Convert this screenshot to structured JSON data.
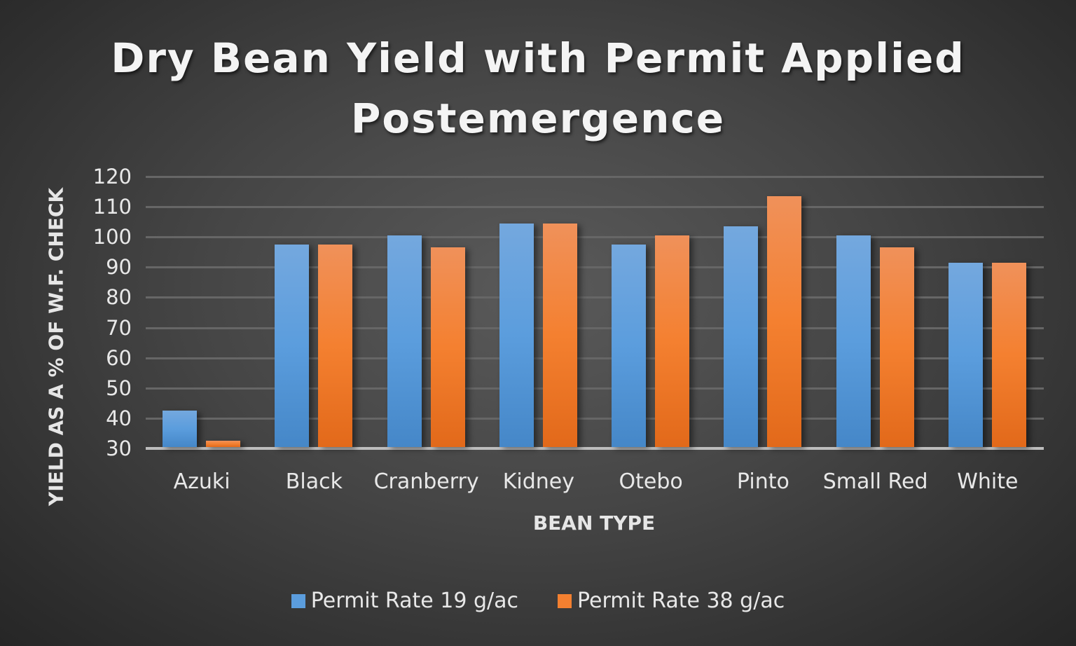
{
  "chart_data": {
    "type": "bar",
    "title": "Dry Bean Yield with Permit Applied Postemergence",
    "title_lines": [
      "Dry Bean Yield with Permit Applied",
      "Postemergence"
    ],
    "xlabel": "BEAN TYPE",
    "ylabel": "YIELD AS A % OF W.F. CHECK",
    "categories": [
      "Azuki",
      "Black",
      "Cranberry",
      "Kidney",
      "Otebo",
      "Pinto",
      "Small Red",
      "White"
    ],
    "series": [
      {
        "name": "Permit Rate 19 g/ac",
        "color": "#5b9ddd",
        "values": [
          42,
          97,
          100,
          104,
          97,
          103,
          100,
          91
        ]
      },
      {
        "name": "Permit Rate 38 g/ac",
        "color": "#f48030",
        "values": [
          32,
          97,
          96,
          104,
          100,
          113,
          96,
          91
        ]
      }
    ],
    "ylim": [
      30,
      120
    ],
    "yticks": [
      30,
      40,
      50,
      60,
      70,
      80,
      90,
      100,
      110,
      120
    ],
    "grid": true,
    "legend_position": "bottom"
  }
}
